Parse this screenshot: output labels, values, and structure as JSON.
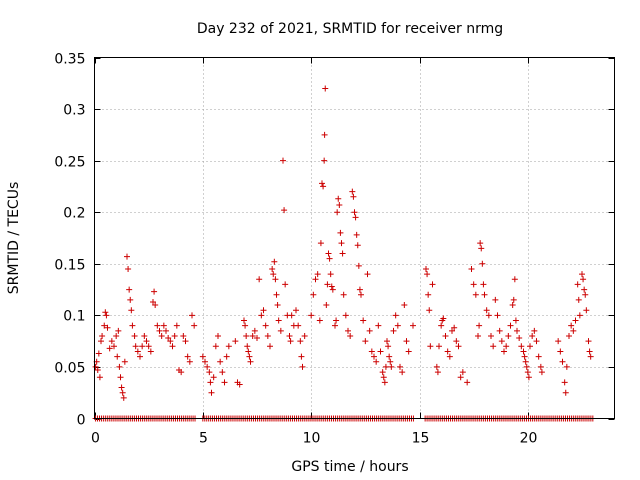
{
  "chart_data": {
    "type": "scatter",
    "title": "Day 232 of 2021, SRMTID for receiver nrmg",
    "xlabel": "GPS time / hours",
    "ylabel": "SRMTID / TECUs",
    "xlim": [
      0,
      24
    ],
    "ylim": [
      0,
      0.35
    ],
    "x_ticks": [
      0,
      5,
      10,
      15,
      20
    ],
    "x_tick_labels": [
      "0",
      "5",
      "10",
      "15",
      "20"
    ],
    "y_ticks": [
      0,
      0.05,
      0.1,
      0.15,
      0.2,
      0.25,
      0.3,
      0.35
    ],
    "y_tick_labels": [
      "0",
      "0.05",
      "0.1",
      "0.15",
      "0.2",
      "0.25",
      "0.3",
      "0.35"
    ],
    "grid": true,
    "marker": "+",
    "color": "#cc0000",
    "series": [
      {
        "name": "SRMTID",
        "points": [
          [
            0.05,
            0.05
          ],
          [
            0.1,
            0.055
          ],
          [
            0.15,
            0.047
          ],
          [
            0.2,
            0.063
          ],
          [
            0.25,
            0.04
          ],
          [
            0.3,
            0.075
          ],
          [
            0.35,
            0.08
          ],
          [
            0.45,
            0.09
          ],
          [
            0.5,
            0.103
          ],
          [
            0.55,
            0.1
          ],
          [
            0.6,
            0.088
          ],
          [
            0.7,
            0.068
          ],
          [
            0.8,
            0.075
          ],
          [
            0.9,
            0.07
          ],
          [
            1.0,
            0.08
          ],
          [
            1.05,
            0.06
          ],
          [
            1.1,
            0.085
          ],
          [
            1.15,
            0.05
          ],
          [
            1.2,
            0.04
          ],
          [
            1.25,
            0.03
          ],
          [
            1.3,
            0.025
          ],
          [
            1.35,
            0.02
          ],
          [
            1.4,
            0.055
          ],
          [
            1.5,
            0.157
          ],
          [
            1.55,
            0.145
          ],
          [
            1.6,
            0.125
          ],
          [
            1.65,
            0.115
          ],
          [
            1.7,
            0.105
          ],
          [
            1.75,
            0.09
          ],
          [
            1.85,
            0.08
          ],
          [
            1.9,
            0.07
          ],
          [
            2.0,
            0.065
          ],
          [
            2.1,
            0.06
          ],
          [
            2.2,
            0.07
          ],
          [
            2.3,
            0.08
          ],
          [
            2.4,
            0.075
          ],
          [
            2.5,
            0.07
          ],
          [
            2.6,
            0.065
          ],
          [
            2.7,
            0.113
          ],
          [
            2.75,
            0.123
          ],
          [
            2.8,
            0.11
          ],
          [
            2.9,
            0.09
          ],
          [
            3.0,
            0.085
          ],
          [
            3.1,
            0.08
          ],
          [
            3.2,
            0.09
          ],
          [
            3.3,
            0.085
          ],
          [
            3.4,
            0.078
          ],
          [
            3.5,
            0.075
          ],
          [
            3.6,
            0.07
          ],
          [
            3.7,
            0.08
          ],
          [
            3.8,
            0.09
          ],
          [
            3.9,
            0.047
          ],
          [
            4.0,
            0.045
          ],
          [
            4.1,
            0.08
          ],
          [
            4.2,
            0.075
          ],
          [
            4.3,
            0.06
          ],
          [
            4.4,
            0.055
          ],
          [
            4.5,
            0.1
          ],
          [
            4.6,
            0.09
          ],
          [
            5.0,
            0.06
          ],
          [
            5.1,
            0.055
          ],
          [
            5.2,
            0.05
          ],
          [
            5.3,
            0.045
          ],
          [
            5.35,
            0.035
          ],
          [
            5.4,
            0.025
          ],
          [
            5.5,
            0.04
          ],
          [
            5.6,
            0.07
          ],
          [
            5.7,
            0.08
          ],
          [
            5.8,
            0.055
          ],
          [
            5.9,
            0.045
          ],
          [
            6.0,
            0.035
          ],
          [
            6.1,
            0.06
          ],
          [
            6.2,
            0.07
          ],
          [
            6.5,
            0.075
          ],
          [
            6.6,
            0.035
          ],
          [
            6.7,
            0.033
          ],
          [
            6.9,
            0.095
          ],
          [
            6.95,
            0.09
          ],
          [
            7.0,
            0.08
          ],
          [
            7.05,
            0.07
          ],
          [
            7.1,
            0.065
          ],
          [
            7.15,
            0.06
          ],
          [
            7.2,
            0.055
          ],
          [
            7.3,
            0.08
          ],
          [
            7.4,
            0.085
          ],
          [
            7.5,
            0.078
          ],
          [
            7.6,
            0.135
          ],
          [
            7.7,
            0.1
          ],
          [
            7.8,
            0.105
          ],
          [
            7.9,
            0.09
          ],
          [
            8.0,
            0.08
          ],
          [
            8.1,
            0.07
          ],
          [
            8.2,
            0.145
          ],
          [
            8.25,
            0.14
          ],
          [
            8.3,
            0.152
          ],
          [
            8.35,
            0.135
          ],
          [
            8.4,
            0.12
          ],
          [
            8.45,
            0.11
          ],
          [
            8.5,
            0.095
          ],
          [
            8.6,
            0.085
          ],
          [
            8.7,
            0.25
          ],
          [
            8.75,
            0.202
          ],
          [
            8.8,
            0.13
          ],
          [
            8.9,
            0.1
          ],
          [
            9.0,
            0.08
          ],
          [
            9.05,
            0.075
          ],
          [
            9.1,
            0.1
          ],
          [
            9.2,
            0.09
          ],
          [
            9.3,
            0.105
          ],
          [
            9.4,
            0.09
          ],
          [
            9.5,
            0.075
          ],
          [
            9.55,
            0.06
          ],
          [
            9.6,
            0.05
          ],
          [
            9.7,
            0.08
          ],
          [
            10.0,
            0.1
          ],
          [
            10.1,
            0.12
          ],
          [
            10.2,
            0.135
          ],
          [
            10.3,
            0.14
          ],
          [
            10.4,
            0.095
          ],
          [
            10.45,
            0.17
          ],
          [
            10.5,
            0.228
          ],
          [
            10.55,
            0.225
          ],
          [
            10.6,
            0.25
          ],
          [
            10.62,
            0.275
          ],
          [
            10.65,
            0.32
          ],
          [
            10.7,
            0.11
          ],
          [
            10.75,
            0.13
          ],
          [
            10.8,
            0.16
          ],
          [
            10.85,
            0.155
          ],
          [
            10.9,
            0.14
          ],
          [
            10.95,
            0.128
          ],
          [
            11.0,
            0.125
          ],
          [
            11.1,
            0.09
          ],
          [
            11.15,
            0.095
          ],
          [
            11.2,
            0.2
          ],
          [
            11.25,
            0.213
          ],
          [
            11.3,
            0.207
          ],
          [
            11.35,
            0.18
          ],
          [
            11.4,
            0.17
          ],
          [
            11.45,
            0.16
          ],
          [
            11.5,
            0.12
          ],
          [
            11.6,
            0.1
          ],
          [
            11.7,
            0.085
          ],
          [
            11.8,
            0.08
          ],
          [
            11.9,
            0.22
          ],
          [
            11.95,
            0.215
          ],
          [
            12.0,
            0.2
          ],
          [
            12.05,
            0.195
          ],
          [
            12.1,
            0.178
          ],
          [
            12.15,
            0.168
          ],
          [
            12.2,
            0.148
          ],
          [
            12.25,
            0.125
          ],
          [
            12.3,
            0.12
          ],
          [
            12.4,
            0.095
          ],
          [
            12.5,
            0.075
          ],
          [
            12.6,
            0.14
          ],
          [
            12.7,
            0.085
          ],
          [
            12.8,
            0.065
          ],
          [
            12.9,
            0.06
          ],
          [
            13.0,
            0.055
          ],
          [
            13.1,
            0.09
          ],
          [
            13.2,
            0.065
          ],
          [
            13.3,
            0.045
          ],
          [
            13.35,
            0.04
          ],
          [
            13.4,
            0.035
          ],
          [
            13.45,
            0.05
          ],
          [
            13.5,
            0.075
          ],
          [
            13.55,
            0.07
          ],
          [
            13.6,
            0.06
          ],
          [
            13.65,
            0.055
          ],
          [
            13.7,
            0.05
          ],
          [
            13.8,
            0.085
          ],
          [
            13.9,
            0.1
          ],
          [
            14.0,
            0.09
          ],
          [
            14.1,
            0.05
          ],
          [
            14.2,
            0.045
          ],
          [
            14.3,
            0.11
          ],
          [
            14.4,
            0.075
          ],
          [
            14.5,
            0.065
          ],
          [
            14.7,
            0.09
          ],
          [
            15.3,
            0.145
          ],
          [
            15.35,
            0.14
          ],
          [
            15.4,
            0.12
          ],
          [
            15.45,
            0.105
          ],
          [
            15.5,
            0.07
          ],
          [
            15.6,
            0.13
          ],
          [
            15.8,
            0.05
          ],
          [
            15.85,
            0.045
          ],
          [
            15.9,
            0.07
          ],
          [
            16.0,
            0.09
          ],
          [
            16.05,
            0.095
          ],
          [
            16.1,
            0.097
          ],
          [
            16.2,
            0.08
          ],
          [
            16.3,
            0.065
          ],
          [
            16.4,
            0.06
          ],
          [
            16.5,
            0.085
          ],
          [
            16.6,
            0.088
          ],
          [
            16.7,
            0.075
          ],
          [
            16.8,
            0.07
          ],
          [
            16.9,
            0.04
          ],
          [
            17.0,
            0.045
          ],
          [
            17.2,
            0.035
          ],
          [
            17.4,
            0.145
          ],
          [
            17.5,
            0.13
          ],
          [
            17.6,
            0.12
          ],
          [
            17.7,
            0.08
          ],
          [
            17.75,
            0.09
          ],
          [
            17.8,
            0.17
          ],
          [
            17.85,
            0.165
          ],
          [
            17.9,
            0.15
          ],
          [
            17.95,
            0.13
          ],
          [
            18.0,
            0.12
          ],
          [
            18.1,
            0.105
          ],
          [
            18.2,
            0.1
          ],
          [
            18.3,
            0.08
          ],
          [
            18.4,
            0.07
          ],
          [
            18.5,
            0.115
          ],
          [
            18.6,
            0.1
          ],
          [
            18.7,
            0.085
          ],
          [
            18.8,
            0.075
          ],
          [
            18.9,
            0.065
          ],
          [
            19.0,
            0.07
          ],
          [
            19.1,
            0.08
          ],
          [
            19.2,
            0.09
          ],
          [
            19.3,
            0.11
          ],
          [
            19.35,
            0.115
          ],
          [
            19.4,
            0.135
          ],
          [
            19.45,
            0.095
          ],
          [
            19.5,
            0.085
          ],
          [
            19.6,
            0.078
          ],
          [
            19.7,
            0.07
          ],
          [
            19.8,
            0.065
          ],
          [
            19.85,
            0.06
          ],
          [
            19.9,
            0.055
          ],
          [
            19.95,
            0.05
          ],
          [
            20.0,
            0.045
          ],
          [
            20.05,
            0.04
          ],
          [
            20.1,
            0.07
          ],
          [
            20.2,
            0.08
          ],
          [
            20.3,
            0.085
          ],
          [
            20.4,
            0.075
          ],
          [
            20.5,
            0.06
          ],
          [
            20.6,
            0.05
          ],
          [
            20.65,
            0.045
          ],
          [
            21.4,
            0.075
          ],
          [
            21.5,
            0.065
          ],
          [
            21.6,
            0.055
          ],
          [
            21.7,
            0.035
          ],
          [
            21.75,
            0.025
          ],
          [
            21.8,
            0.05
          ],
          [
            21.9,
            0.08
          ],
          [
            22.0,
            0.09
          ],
          [
            22.1,
            0.085
          ],
          [
            22.2,
            0.095
          ],
          [
            22.3,
            0.13
          ],
          [
            22.35,
            0.115
          ],
          [
            22.4,
            0.1
          ],
          [
            22.5,
            0.14
          ],
          [
            22.55,
            0.135
          ],
          [
            22.6,
            0.125
          ],
          [
            22.65,
            0.12
          ],
          [
            22.7,
            0.105
          ],
          [
            22.8,
            0.075
          ],
          [
            22.85,
            0.065
          ],
          [
            22.9,
            0.06
          ]
        ]
      },
      {
        "name": "zero baseline",
        "x_range": [
          0.05,
          23.0
        ],
        "x_step": 0.09,
        "gaps": [
          [
            4.7,
            4.95
          ],
          [
            14.8,
            15.2
          ]
        ],
        "y": 0
      }
    ]
  }
}
